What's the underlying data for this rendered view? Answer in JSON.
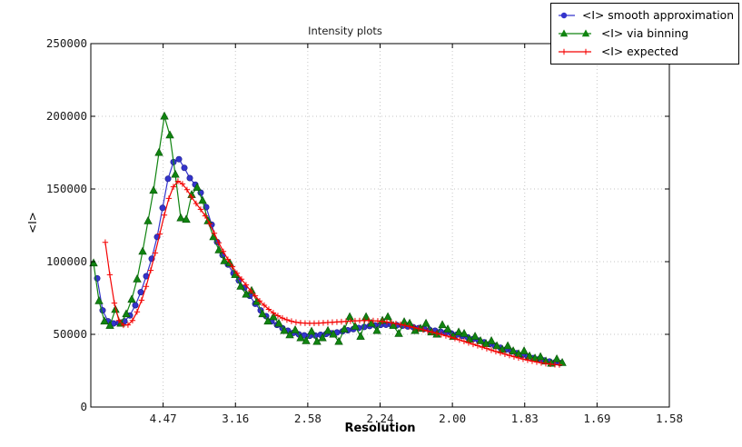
{
  "figure": {
    "title": "Intensity plots",
    "xlabel": "Resolution",
    "ylabel": "<I>"
  },
  "chart_data": {
    "type": "line",
    "title": "Intensity plots",
    "xlabel": "Resolution",
    "ylabel": "<I>",
    "x_scale_note": "x axis is linear in 1/d^2; tick labels show resolution d in Angstrom",
    "xlim": [
      0,
      0.4
    ],
    "ylim": [
      0,
      250000
    ],
    "grid": true,
    "grid_color": "#c6c6c6",
    "axis_color": "#000000",
    "legend_position": "upper right outside axes",
    "x_ticks": [
      {
        "pos": 0.05,
        "label": "4.47"
      },
      {
        "pos": 0.1,
        "label": "3.16"
      },
      {
        "pos": 0.15,
        "label": "2.58"
      },
      {
        "pos": 0.2,
        "label": "2.24"
      },
      {
        "pos": 0.25,
        "label": "2.00"
      },
      {
        "pos": 0.3,
        "label": "1.83"
      },
      {
        "pos": 0.35,
        "label": "1.69"
      },
      {
        "pos": 0.4,
        "label": "1.58"
      }
    ],
    "y_ticks": [
      {
        "pos": 0,
        "label": "0"
      },
      {
        "pos": 50000,
        "label": "50000"
      },
      {
        "pos": 100000,
        "label": "100000"
      },
      {
        "pos": 150000,
        "label": "150000"
      },
      {
        "pos": 200000,
        "label": "200000"
      },
      {
        "pos": 250000,
        "label": "250000"
      }
    ],
    "series": [
      {
        "name": "<I> smooth approximation",
        "color": "#3434cc",
        "marker": "circle",
        "x_start": 0.0044,
        "x_step": 0.003768,
        "y": [
          88500,
          66500,
          59000,
          57500,
          57800,
          59000,
          63000,
          70000,
          79000,
          90000,
          102000,
          117000,
          137000,
          157000,
          168500,
          170500,
          164500,
          157500,
          153000,
          147500,
          137500,
          125500,
          113500,
          104500,
          98000,
          92000,
          87000,
          82000,
          76500,
          71000,
          66500,
          62500,
          59000,
          56500,
          54200,
          52500,
          51000,
          50000,
          49300,
          49000,
          49200,
          49700,
          50200,
          50700,
          51300,
          52000,
          52800,
          53600,
          54400,
          55100,
          55700,
          56200,
          56500,
          56600,
          56500,
          56300,
          55900,
          55400,
          54900,
          54300,
          53700,
          53100,
          52500,
          51900,
          51300,
          50600,
          49800,
          48900,
          47900,
          46800,
          45700,
          44500,
          43300,
          42100,
          40800,
          39500,
          38200,
          37000,
          35800,
          34700,
          33700,
          32800,
          32000,
          31300,
          30700,
          30200
        ]
      },
      {
        "name": "<I> via binning",
        "color": "#108410",
        "marker": "triangle",
        "x_start": 0.0019,
        "x_step": 0.003768,
        "y": [
          99000,
          73000,
          59000,
          56000,
          67000,
          57500,
          64000,
          74000,
          88000,
          107000,
          128000,
          149000,
          175000,
          200000,
          187000,
          160000,
          130000,
          129000,
          146000,
          151000,
          142000,
          128000,
          117000,
          108000,
          100500,
          99000,
          91000,
          83000,
          77500,
          80000,
          72500,
          64000,
          59000,
          62000,
          57500,
          52500,
          49500,
          53000,
          47500,
          45500,
          52000,
          45000,
          47500,
          52500,
          50000,
          45000,
          53500,
          62000,
          55500,
          48500,
          62000,
          57500,
          52500,
          59500,
          62000,
          56000,
          50500,
          58500,
          57500,
          52500,
          54000,
          57500,
          51500,
          50000,
          56500,
          53500,
          48500,
          51500,
          50500,
          46500,
          48500,
          45500,
          43500,
          45500,
          42000,
          39500,
          42000,
          38500,
          36500,
          38500,
          35000,
          33500,
          34500,
          31500,
          30000,
          33000,
          30500
        ]
      },
      {
        "name": "<I> expected",
        "color": "#f40000",
        "marker": "plus",
        "x_start": 0.01,
        "x_step": 0.00314,
        "y": [
          113300,
          91000,
          71500,
          59500,
          56300,
          56500,
          59500,
          65500,
          73500,
          83000,
          94000,
          106000,
          119000,
          132000,
          143500,
          151500,
          155300,
          153500,
          149500,
          144500,
          140000,
          136000,
          131500,
          126000,
          119500,
          113000,
          107000,
          101500,
          96500,
          92000,
          88000,
          84000,
          80000,
          76500,
          73000,
          70000,
          67200,
          64800,
          62800,
          61200,
          60000,
          59000,
          58300,
          57900,
          57700,
          57600,
          57600,
          57700,
          57900,
          58100,
          58300,
          58500,
          58700,
          58900,
          59100,
          59300,
          59400,
          59500,
          59500,
          59400,
          59200,
          58900,
          58500,
          58000,
          57400,
          56800,
          56100,
          55400,
          54700,
          53900,
          53100,
          52300,
          51500,
          50700,
          49900,
          49000,
          48100,
          47200,
          46200,
          45200,
          44200,
          43200,
          42200,
          41200,
          40200,
          39200,
          38200,
          37300,
          36400,
          35500,
          34600,
          33800,
          33000,
          32300,
          31600,
          31000,
          30400,
          29900,
          29500,
          29200,
          29000
        ]
      }
    ]
  }
}
